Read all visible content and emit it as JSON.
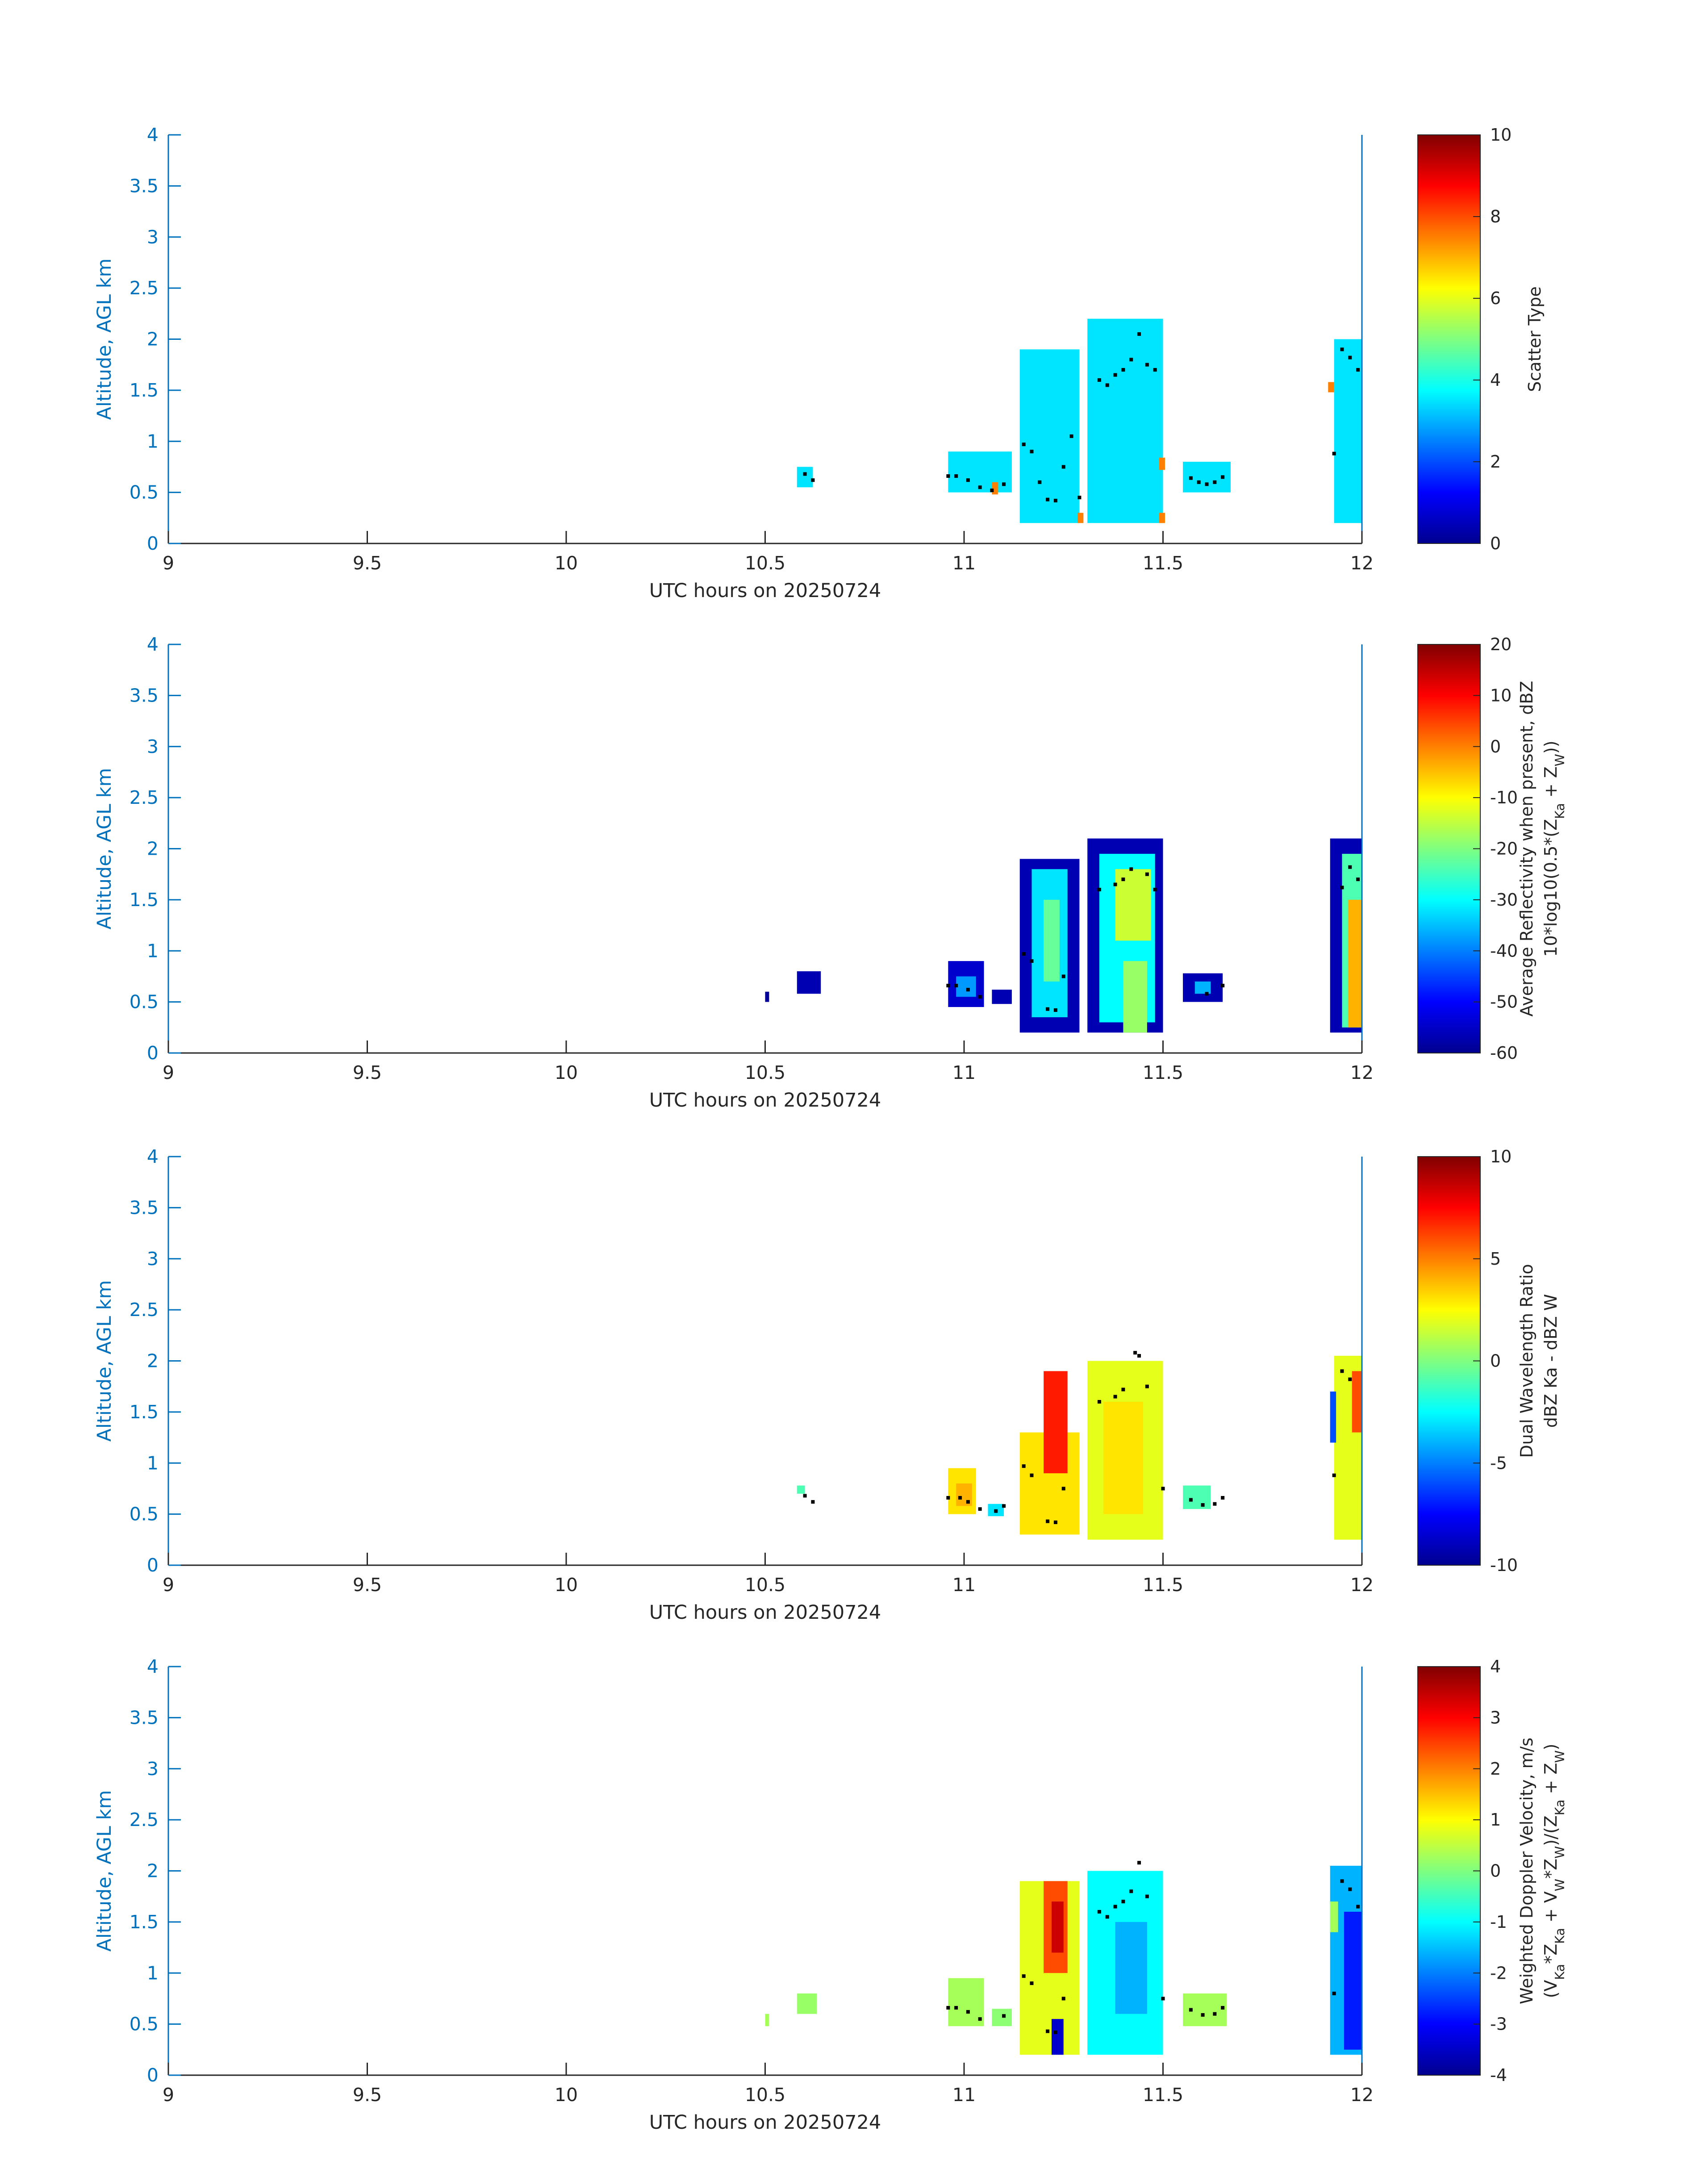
{
  "figure": {
    "background": "#ffffff",
    "axis_color": "#0072bd",
    "text_color": "#262626",
    "colormap": "jet"
  },
  "chart_data": [
    {
      "type": "heatmap",
      "panel": "scatter-type",
      "xlabel": "UTC hours on 20250724",
      "ylabel": "Altitude, AGL km",
      "xlim": [
        9,
        12
      ],
      "ylim": [
        0,
        4
      ],
      "xticks": [
        "9",
        "9.5",
        "10",
        "10.5",
        "11",
        "11.5",
        "12"
      ],
      "yticks": [
        "0",
        "0.5",
        "1",
        "1.5",
        "2",
        "2.5",
        "3",
        "3.5",
        "4"
      ],
      "colorbar": {
        "label_lines": [
          "Scatter Type"
        ],
        "range": [
          0,
          10
        ],
        "ticks": [
          "0",
          "2",
          "4",
          "6",
          "8",
          "10"
        ]
      },
      "blocks": [
        {
          "x0": 10.58,
          "x1": 10.62,
          "y0": 0.55,
          "y1": 0.75,
          "value": 3.5
        },
        {
          "x0": 10.96,
          "x1": 11.12,
          "y0": 0.5,
          "y1": 0.9,
          "value": 3.5
        },
        {
          "x0": 11.14,
          "x1": 11.29,
          "y0": 0.2,
          "y1": 1.9,
          "value": 3.5
        },
        {
          "x0": 11.31,
          "x1": 11.5,
          "y0": 0.2,
          "y1": 2.2,
          "value": 3.5
        },
        {
          "x0": 11.55,
          "x1": 11.67,
          "y0": 0.5,
          "y1": 0.8,
          "value": 3.5
        },
        {
          "x0": 11.93,
          "x1": 12.01,
          "y0": 0.2,
          "y1": 2.0,
          "value": 3.5
        },
        {
          "x0": 11.07,
          "x1": 11.085,
          "y0": 0.48,
          "y1": 0.6,
          "value": 7.5
        },
        {
          "x0": 11.285,
          "x1": 11.3,
          "y0": 0.2,
          "y1": 0.3,
          "value": 7.5
        },
        {
          "x0": 11.49,
          "x1": 11.505,
          "y0": 0.2,
          "y1": 0.3,
          "value": 7.5
        },
        {
          "x0": 11.49,
          "x1": 11.505,
          "y0": 0.72,
          "y1": 0.84,
          "value": 7.5
        },
        {
          "x0": 11.915,
          "x1": 11.93,
          "y0": 1.48,
          "y1": 1.58,
          "value": 7.5
        }
      ],
      "markers": [
        {
          "x": 10.6,
          "y": 0.68
        },
        {
          "x": 10.62,
          "y": 0.62
        },
        {
          "x": 10.96,
          "y": 0.66
        },
        {
          "x": 10.98,
          "y": 0.66
        },
        {
          "x": 11.01,
          "y": 0.62
        },
        {
          "x": 11.04,
          "y": 0.55
        },
        {
          "x": 11.07,
          "y": 0.52
        },
        {
          "x": 11.1,
          "y": 0.58
        },
        {
          "x": 11.15,
          "y": 0.97
        },
        {
          "x": 11.17,
          "y": 0.9
        },
        {
          "x": 11.19,
          "y": 0.6
        },
        {
          "x": 11.21,
          "y": 0.43
        },
        {
          "x": 11.23,
          "y": 0.42
        },
        {
          "x": 11.25,
          "y": 0.75
        },
        {
          "x": 11.27,
          "y": 1.05
        },
        {
          "x": 11.29,
          "y": 0.45
        },
        {
          "x": 11.34,
          "y": 1.6
        },
        {
          "x": 11.36,
          "y": 1.55
        },
        {
          "x": 11.38,
          "y": 1.65
        },
        {
          "x": 11.4,
          "y": 1.7
        },
        {
          "x": 11.42,
          "y": 1.8
        },
        {
          "x": 11.44,
          "y": 2.05
        },
        {
          "x": 11.46,
          "y": 1.75
        },
        {
          "x": 11.48,
          "y": 1.7
        },
        {
          "x": 11.57,
          "y": 0.64
        },
        {
          "x": 11.59,
          "y": 0.6
        },
        {
          "x": 11.61,
          "y": 0.58
        },
        {
          "x": 11.63,
          "y": 0.6
        },
        {
          "x": 11.65,
          "y": 0.65
        },
        {
          "x": 11.93,
          "y": 0.88
        },
        {
          "x": 11.95,
          "y": 1.9
        },
        {
          "x": 11.97,
          "y": 1.82
        },
        {
          "x": 11.99,
          "y": 1.7
        }
      ]
    },
    {
      "type": "heatmap",
      "panel": "average-reflectivity",
      "xlabel": "UTC hours on 20250724",
      "ylabel": "Altitude, AGL km",
      "xlim": [
        9,
        12
      ],
      "ylim": [
        0,
        4
      ],
      "xticks": [
        "9",
        "9.5",
        "10",
        "10.5",
        "11",
        "11.5",
        "12"
      ],
      "yticks": [
        "0",
        "0.5",
        "1",
        "1.5",
        "2",
        "2.5",
        "3",
        "3.5",
        "4"
      ],
      "colorbar": {
        "label_lines": [
          "Average Reflectivity when present, dBZ",
          "10*log10(0.5*(Z_Ka + Z_W))"
        ],
        "range": [
          -60,
          20
        ],
        "ticks": [
          "-60",
          "-50",
          "-40",
          "-30",
          "-20",
          "-10",
          "0",
          "10",
          "20"
        ]
      },
      "blocks": [
        {
          "x0": 10.5,
          "x1": 10.51,
          "y0": 0.5,
          "y1": 0.6,
          "value": -58
        },
        {
          "x0": 10.58,
          "x1": 10.64,
          "y0": 0.58,
          "y1": 0.8,
          "value": -56
        },
        {
          "x0": 10.96,
          "x1": 11.05,
          "y0": 0.45,
          "y1": 0.9,
          "value": -54
        },
        {
          "x0": 10.98,
          "x1": 11.03,
          "y0": 0.55,
          "y1": 0.75,
          "value": -38
        },
        {
          "x0": 11.07,
          "x1": 11.12,
          "y0": 0.48,
          "y1": 0.62,
          "value": -56
        },
        {
          "x0": 11.14,
          "x1": 11.29,
          "y0": 0.2,
          "y1": 1.9,
          "value": -56
        },
        {
          "x0": 11.17,
          "x1": 11.26,
          "y0": 0.35,
          "y1": 1.8,
          "value": -32
        },
        {
          "x0": 11.2,
          "x1": 11.24,
          "y0": 0.7,
          "y1": 1.5,
          "value": -22
        },
        {
          "x0": 11.31,
          "x1": 11.5,
          "y0": 0.2,
          "y1": 2.1,
          "value": -56
        },
        {
          "x0": 11.34,
          "x1": 11.48,
          "y0": 0.3,
          "y1": 1.95,
          "value": -30
        },
        {
          "x0": 11.38,
          "x1": 11.47,
          "y0": 1.1,
          "y1": 1.8,
          "value": -14
        },
        {
          "x0": 11.4,
          "x1": 11.46,
          "y0": 0.2,
          "y1": 0.9,
          "value": -18
        },
        {
          "x0": 11.55,
          "x1": 11.65,
          "y0": 0.5,
          "y1": 0.78,
          "value": -56
        },
        {
          "x0": 11.58,
          "x1": 11.62,
          "y0": 0.58,
          "y1": 0.7,
          "value": -36
        },
        {
          "x0": 11.92,
          "x1": 12.01,
          "y0": 0.2,
          "y1": 2.1,
          "value": -56
        },
        {
          "x0": 11.95,
          "x1": 12.0,
          "y0": 0.25,
          "y1": 1.95,
          "value": -24
        },
        {
          "x0": 11.965,
          "x1": 12.0,
          "y0": 0.25,
          "y1": 1.5,
          "value": -4
        }
      ],
      "markers": [
        {
          "x": 10.96,
          "y": 0.66
        },
        {
          "x": 10.98,
          "y": 0.66
        },
        {
          "x": 11.01,
          "y": 0.62
        },
        {
          "x": 11.04,
          "y": 0.55
        },
        {
          "x": 11.15,
          "y": 0.97
        },
        {
          "x": 11.17,
          "y": 0.9
        },
        {
          "x": 11.21,
          "y": 0.43
        },
        {
          "x": 11.23,
          "y": 0.42
        },
        {
          "x": 11.25,
          "y": 0.75
        },
        {
          "x": 11.34,
          "y": 1.6
        },
        {
          "x": 11.38,
          "y": 1.65
        },
        {
          "x": 11.4,
          "y": 1.7
        },
        {
          "x": 11.42,
          "y": 1.8
        },
        {
          "x": 11.46,
          "y": 1.75
        },
        {
          "x": 11.48,
          "y": 1.6
        },
        {
          "x": 11.61,
          "y": 0.58
        },
        {
          "x": 11.65,
          "y": 0.66
        },
        {
          "x": 11.95,
          "y": 1.62
        },
        {
          "x": 11.97,
          "y": 1.82
        },
        {
          "x": 11.99,
          "y": 1.7
        }
      ]
    },
    {
      "type": "heatmap",
      "panel": "dual-wavelength-ratio",
      "xlabel": "UTC hours on 20250724",
      "ylabel": "Altitude, AGL km",
      "xlim": [
        9,
        12
      ],
      "ylim": [
        0,
        4
      ],
      "xticks": [
        "9",
        "9.5",
        "10",
        "10.5",
        "11",
        "11.5",
        "12"
      ],
      "yticks": [
        "0",
        "0.5",
        "1",
        "1.5",
        "2",
        "2.5",
        "3",
        "3.5",
        "4"
      ],
      "colorbar": {
        "label_lines": [
          "Dual Wavelength Ratio",
          "dBZ Ka - dBZ W"
        ],
        "range": [
          -10,
          10
        ],
        "ticks": [
          "-10",
          "-5",
          "0",
          "5",
          "10"
        ]
      },
      "blocks": [
        {
          "x0": 10.58,
          "x1": 10.6,
          "y0": 0.7,
          "y1": 0.78,
          "value": -1
        },
        {
          "x0": 10.96,
          "x1": 11.03,
          "y0": 0.5,
          "y1": 0.95,
          "value": 3
        },
        {
          "x0": 10.98,
          "x1": 11.02,
          "y0": 0.58,
          "y1": 0.8,
          "value": 4
        },
        {
          "x0": 11.06,
          "x1": 11.1,
          "y0": 0.48,
          "y1": 0.6,
          "value": -3
        },
        {
          "x0": 11.14,
          "x1": 11.29,
          "y0": 0.3,
          "y1": 1.3,
          "value": 3
        },
        {
          "x0": 11.2,
          "x1": 11.26,
          "y0": 0.9,
          "y1": 1.9,
          "value": 7
        },
        {
          "x0": 11.31,
          "x1": 11.5,
          "y0": 0.25,
          "y1": 2.0,
          "value": 2
        },
        {
          "x0": 11.35,
          "x1": 11.45,
          "y0": 0.5,
          "y1": 1.6,
          "value": 3
        },
        {
          "x0": 11.55,
          "x1": 11.62,
          "y0": 0.55,
          "y1": 0.78,
          "value": -1
        },
        {
          "x0": 11.93,
          "x1": 12.01,
          "y0": 0.25,
          "y1": 2.05,
          "value": 2
        },
        {
          "x0": 11.975,
          "x1": 12.01,
          "y0": 1.3,
          "y1": 1.9,
          "value": 6
        },
        {
          "x0": 11.92,
          "x1": 11.935,
          "y0": 1.2,
          "y1": 1.7,
          "value": -6
        }
      ],
      "markers": [
        {
          "x": 10.6,
          "y": 0.68
        },
        {
          "x": 10.62,
          "y": 0.62
        },
        {
          "x": 10.96,
          "y": 0.66
        },
        {
          "x": 10.99,
          "y": 0.66
        },
        {
          "x": 11.01,
          "y": 0.62
        },
        {
          "x": 11.04,
          "y": 0.55
        },
        {
          "x": 11.08,
          "y": 0.53
        },
        {
          "x": 11.1,
          "y": 0.58
        },
        {
          "x": 11.15,
          "y": 0.97
        },
        {
          "x": 11.17,
          "y": 0.88
        },
        {
          "x": 11.21,
          "y": 0.43
        },
        {
          "x": 11.23,
          "y": 0.42
        },
        {
          "x": 11.25,
          "y": 0.75
        },
        {
          "x": 11.34,
          "y": 1.6
        },
        {
          "x": 11.38,
          "y": 1.65
        },
        {
          "x": 11.4,
          "y": 1.72
        },
        {
          "x": 11.43,
          "y": 2.08
        },
        {
          "x": 11.44,
          "y": 2.05
        },
        {
          "x": 11.46,
          "y": 1.75
        },
        {
          "x": 11.5,
          "y": 0.75
        },
        {
          "x": 11.57,
          "y": 0.64
        },
        {
          "x": 11.6,
          "y": 0.59
        },
        {
          "x": 11.63,
          "y": 0.6
        },
        {
          "x": 11.65,
          "y": 0.66
        },
        {
          "x": 11.93,
          "y": 0.88
        },
        {
          "x": 11.95,
          "y": 1.9
        },
        {
          "x": 11.97,
          "y": 1.82
        }
      ]
    },
    {
      "type": "heatmap",
      "panel": "weighted-doppler-velocity",
      "xlabel": "UTC hours on 20250724",
      "ylabel": "Altitude, AGL km",
      "xlim": [
        9,
        12
      ],
      "ylim": [
        0,
        4
      ],
      "xticks": [
        "9",
        "9.5",
        "10",
        "10.5",
        "11",
        "11.5",
        "12"
      ],
      "yticks": [
        "0",
        "0.5",
        "1",
        "1.5",
        "2",
        "2.5",
        "3",
        "3.5",
        "4"
      ],
      "colorbar": {
        "label_lines": [
          "Weighted Doppler Velocity, m/s",
          "(V_Ka*Z_Ka + V_W*Z_W)/(Z_Ka + Z_W)"
        ],
        "range": [
          -4,
          4
        ],
        "ticks": [
          "-4",
          "-3",
          "-2",
          "-1",
          "0",
          "1",
          "2",
          "3",
          "4"
        ]
      },
      "blocks": [
        {
          "x0": 10.5,
          "x1": 10.51,
          "y0": 0.48,
          "y1": 0.6,
          "value": 0.3
        },
        {
          "x0": 10.58,
          "x1": 10.63,
          "y0": 0.6,
          "y1": 0.8,
          "value": 0.2
        },
        {
          "x0": 10.96,
          "x1": 11.05,
          "y0": 0.48,
          "y1": 0.95,
          "value": 0.3
        },
        {
          "x0": 11.07,
          "x1": 11.12,
          "y0": 0.48,
          "y1": 0.65,
          "value": 0.1
        },
        {
          "x0": 11.14,
          "x1": 11.29,
          "y0": 0.2,
          "y1": 1.9,
          "value": 0.8
        },
        {
          "x0": 11.2,
          "x1": 11.26,
          "y0": 1.0,
          "y1": 1.9,
          "value": 2.4
        },
        {
          "x0": 11.22,
          "x1": 11.25,
          "y0": 1.2,
          "y1": 1.7,
          "value": 3.4
        },
        {
          "x0": 11.22,
          "x1": 11.25,
          "y0": 0.2,
          "y1": 0.55,
          "value": -3.4
        },
        {
          "x0": 11.31,
          "x1": 11.5,
          "y0": 0.2,
          "y1": 2.0,
          "value": -1.0
        },
        {
          "x0": 11.38,
          "x1": 11.46,
          "y0": 0.6,
          "y1": 1.5,
          "value": -1.6
        },
        {
          "x0": 11.55,
          "x1": 11.66,
          "y0": 0.48,
          "y1": 0.8,
          "value": 0.3
        },
        {
          "x0": 11.92,
          "x1": 12.01,
          "y0": 0.2,
          "y1": 2.05,
          "value": -1.6
        },
        {
          "x0": 11.955,
          "x1": 12.0,
          "y0": 0.25,
          "y1": 1.6,
          "value": -2.8
        },
        {
          "x0": 11.92,
          "x1": 11.94,
          "y0": 1.4,
          "y1": 1.7,
          "value": 0.3
        }
      ],
      "markers": [
        {
          "x": 10.96,
          "y": 0.66
        },
        {
          "x": 10.98,
          "y": 0.66
        },
        {
          "x": 11.01,
          "y": 0.62
        },
        {
          "x": 11.04,
          "y": 0.55
        },
        {
          "x": 11.1,
          "y": 0.58
        },
        {
          "x": 11.15,
          "y": 0.97
        },
        {
          "x": 11.17,
          "y": 0.9
        },
        {
          "x": 11.21,
          "y": 0.43
        },
        {
          "x": 11.23,
          "y": 0.42
        },
        {
          "x": 11.25,
          "y": 0.75
        },
        {
          "x": 11.34,
          "y": 1.6
        },
        {
          "x": 11.36,
          "y": 1.55
        },
        {
          "x": 11.38,
          "y": 1.65
        },
        {
          "x": 11.4,
          "y": 1.7
        },
        {
          "x": 11.42,
          "y": 1.8
        },
        {
          "x": 11.44,
          "y": 2.08
        },
        {
          "x": 11.46,
          "y": 1.75
        },
        {
          "x": 11.5,
          "y": 0.75
        },
        {
          "x": 11.57,
          "y": 0.64
        },
        {
          "x": 11.6,
          "y": 0.59
        },
        {
          "x": 11.63,
          "y": 0.6
        },
        {
          "x": 11.65,
          "y": 0.66
        },
        {
          "x": 11.93,
          "y": 0.8
        },
        {
          "x": 11.95,
          "y": 1.9
        },
        {
          "x": 11.97,
          "y": 1.82
        },
        {
          "x": 11.99,
          "y": 1.65
        }
      ]
    }
  ]
}
